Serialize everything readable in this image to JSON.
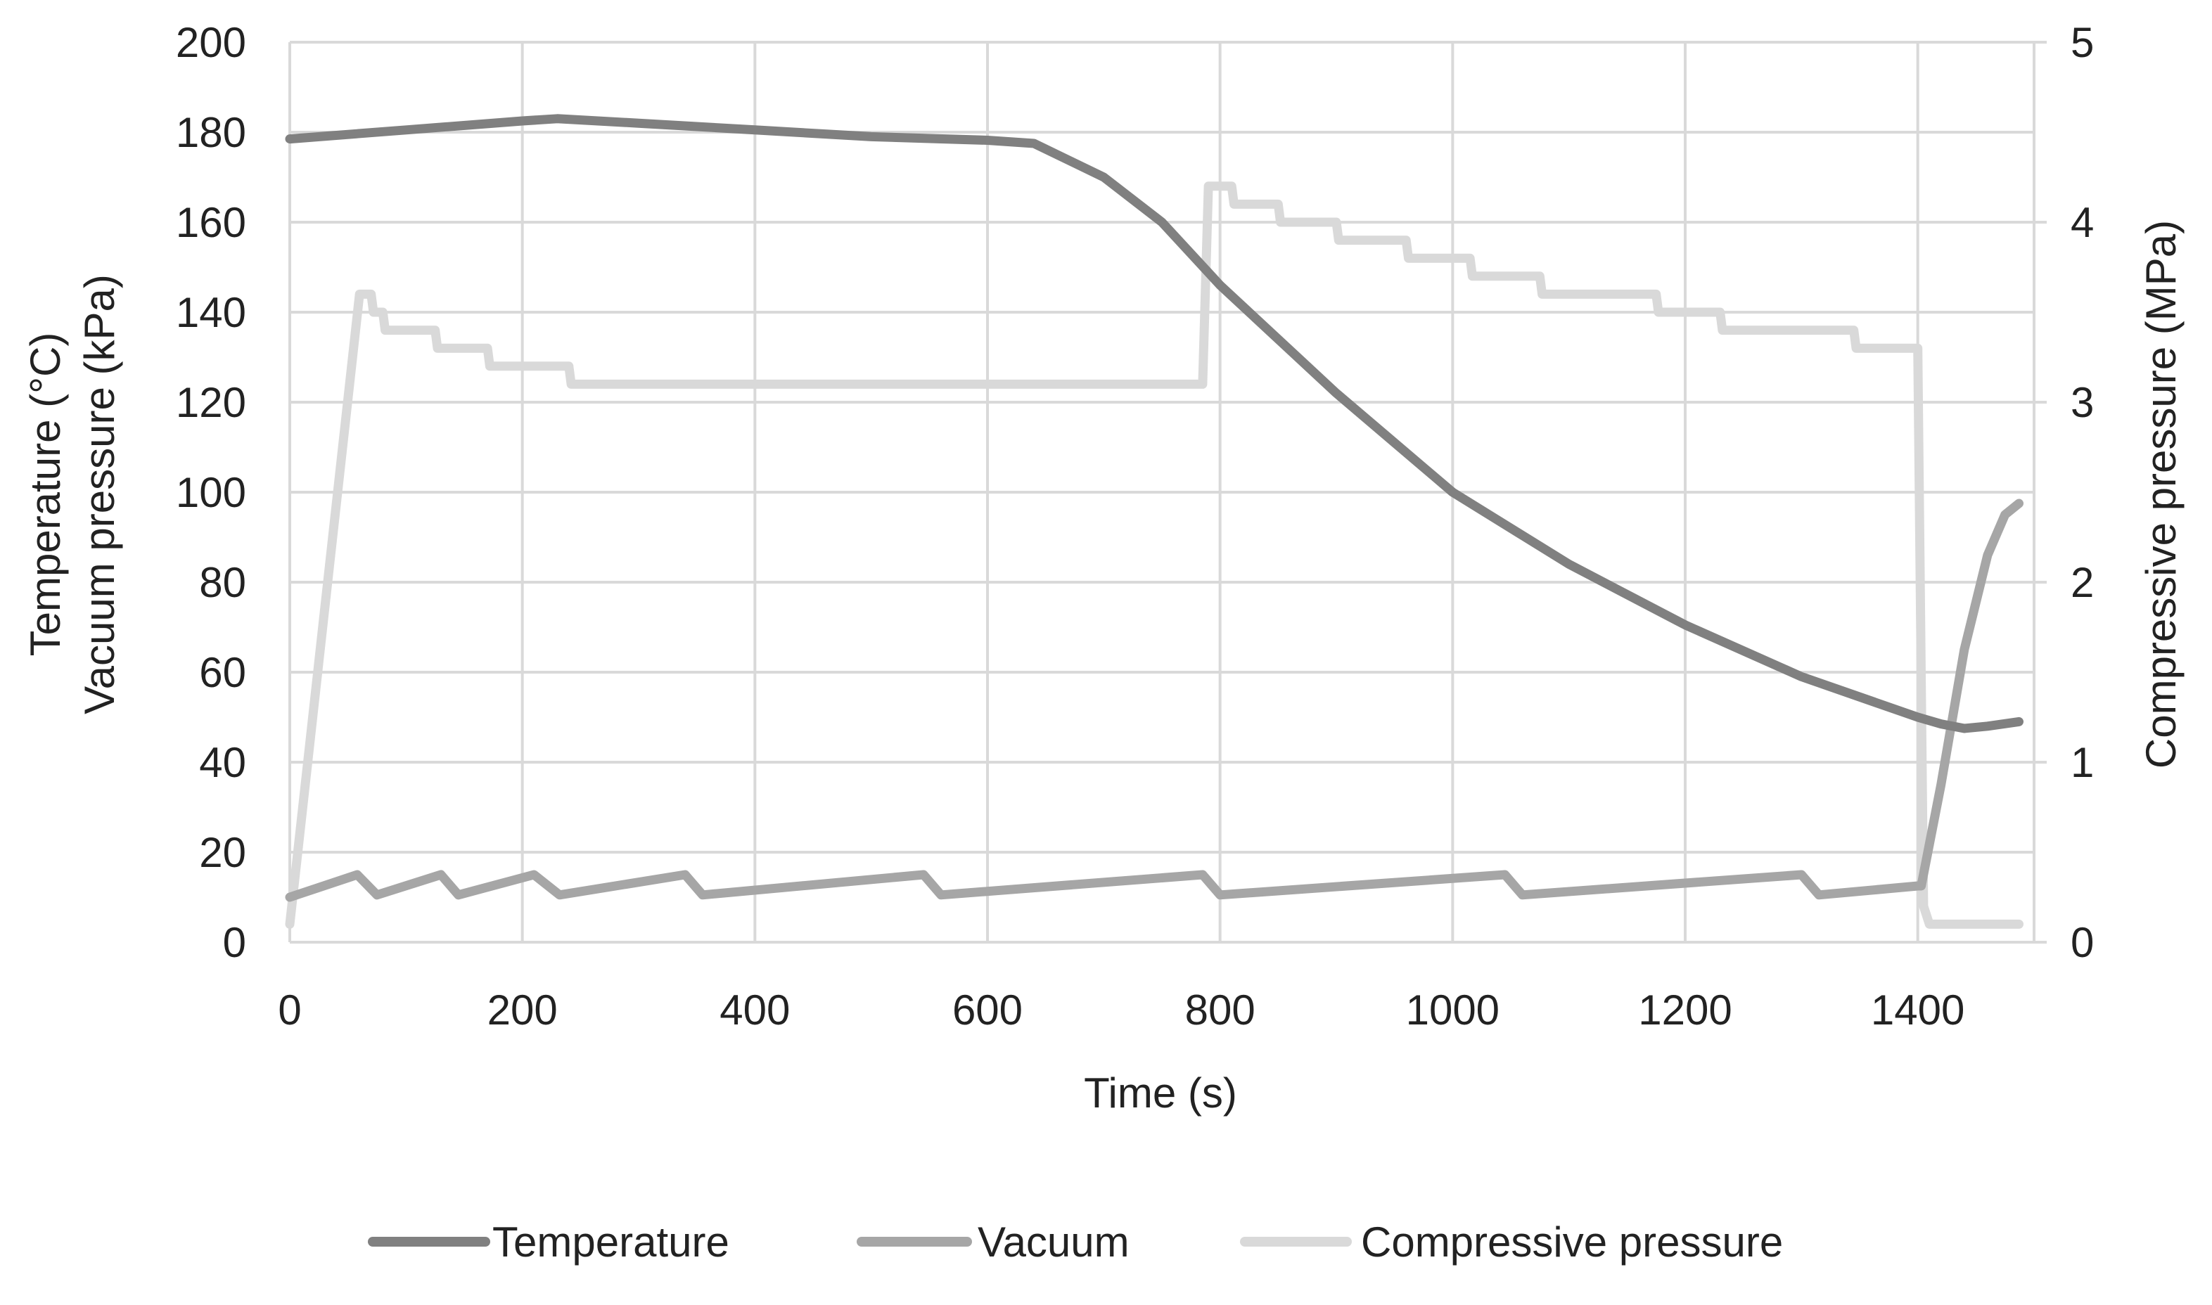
{
  "chart_data": {
    "type": "line",
    "title": "",
    "xlabel": "Time (s)",
    "ylabel_left": [
      "Temperature (°C)",
      "Vacuum pressure (kPa)"
    ],
    "ylabel_right": "Compressive pressure (MPa)",
    "xlim": [
      0,
      1500
    ],
    "ylim_left": [
      0,
      200
    ],
    "ylim_right": [
      0,
      5
    ],
    "x_ticks": [
      "0",
      "200",
      "400",
      "600",
      "800",
      "1000",
      "1200",
      "1400"
    ],
    "y_left_ticks": [
      "0",
      "20",
      "40",
      "60",
      "80",
      "100",
      "120",
      "140",
      "160",
      "180",
      "200"
    ],
    "y_right_ticks": [
      "0",
      "1",
      "2",
      "3",
      "4",
      "5"
    ],
    "grid": true,
    "legend_position": "bottom",
    "series": [
      {
        "name": "Temperature",
        "axis": "left",
        "color": "#808080",
        "x": [
          0,
          100,
          200,
          230,
          300,
          400,
          500,
          600,
          640,
          700,
          750,
          800,
          900,
          1000,
          1100,
          1200,
          1300,
          1400,
          1420,
          1440,
          1460,
          1487
        ],
        "y": [
          178.5,
          180.5,
          182.5,
          183,
          182,
          180.5,
          179,
          178.2,
          177.5,
          170,
          160,
          146,
          122,
          100,
          84,
          70.5,
          59,
          50,
          48.5,
          47.5,
          48,
          49
        ]
      },
      {
        "name": "Vacuum",
        "axis": "left",
        "color": "#a6a6a6",
        "x": [
          0,
          58,
          75,
          130,
          145,
          210,
          232,
          340,
          355,
          545,
          560,
          785,
          800,
          1045,
          1060,
          1300,
          1315,
          1400,
          1403,
          1420,
          1440,
          1460,
          1475,
          1487
        ],
        "y": [
          10,
          15,
          10.5,
          15,
          10.5,
          15,
          10.5,
          15,
          10.5,
          15,
          10.5,
          15,
          10.5,
          15,
          10.5,
          15,
          10.5,
          12.5,
          12.5,
          35,
          65,
          86,
          95,
          97.5
        ]
      },
      {
        "name": "Compressive pressure",
        "axis": "right",
        "color": "#d9d9d9",
        "x": [
          0,
          60,
          70,
          72,
          80,
          82,
          90,
          92,
          125,
          127,
          130,
          132,
          170,
          172,
          175,
          177,
          240,
          242,
          245,
          247,
          783,
          785,
          790,
          792,
          810,
          812,
          850,
          852,
          855,
          857,
          900,
          902,
          905,
          907,
          960,
          962,
          965,
          967,
          1015,
          1017,
          1020,
          1022,
          1075,
          1077,
          1080,
          1082,
          1175,
          1177,
          1180,
          1182,
          1230,
          1232,
          1235,
          1237,
          1345,
          1347,
          1350,
          1352,
          1400,
          1405,
          1410,
          1487
        ],
        "y": [
          0.1,
          3.6,
          3.6,
          3.5,
          3.5,
          3.4,
          3.4,
          3.4,
          3.4,
          3.3,
          3.3,
          3.3,
          3.3,
          3.2,
          3.2,
          3.2,
          3.2,
          3.1,
          3.1,
          3.1,
          3.1,
          3.1,
          4.2,
          4.2,
          4.2,
          4.1,
          4.1,
          4.0,
          4.0,
          4.0,
          4.0,
          3.9,
          3.9,
          3.9,
          3.9,
          3.8,
          3.8,
          3.8,
          3.8,
          3.7,
          3.7,
          3.7,
          3.7,
          3.6,
          3.6,
          3.6,
          3.6,
          3.5,
          3.5,
          3.5,
          3.5,
          3.4,
          3.4,
          3.4,
          3.4,
          3.3,
          3.3,
          3.3,
          3.3,
          0.2,
          0.1,
          0.1
        ]
      }
    ]
  }
}
